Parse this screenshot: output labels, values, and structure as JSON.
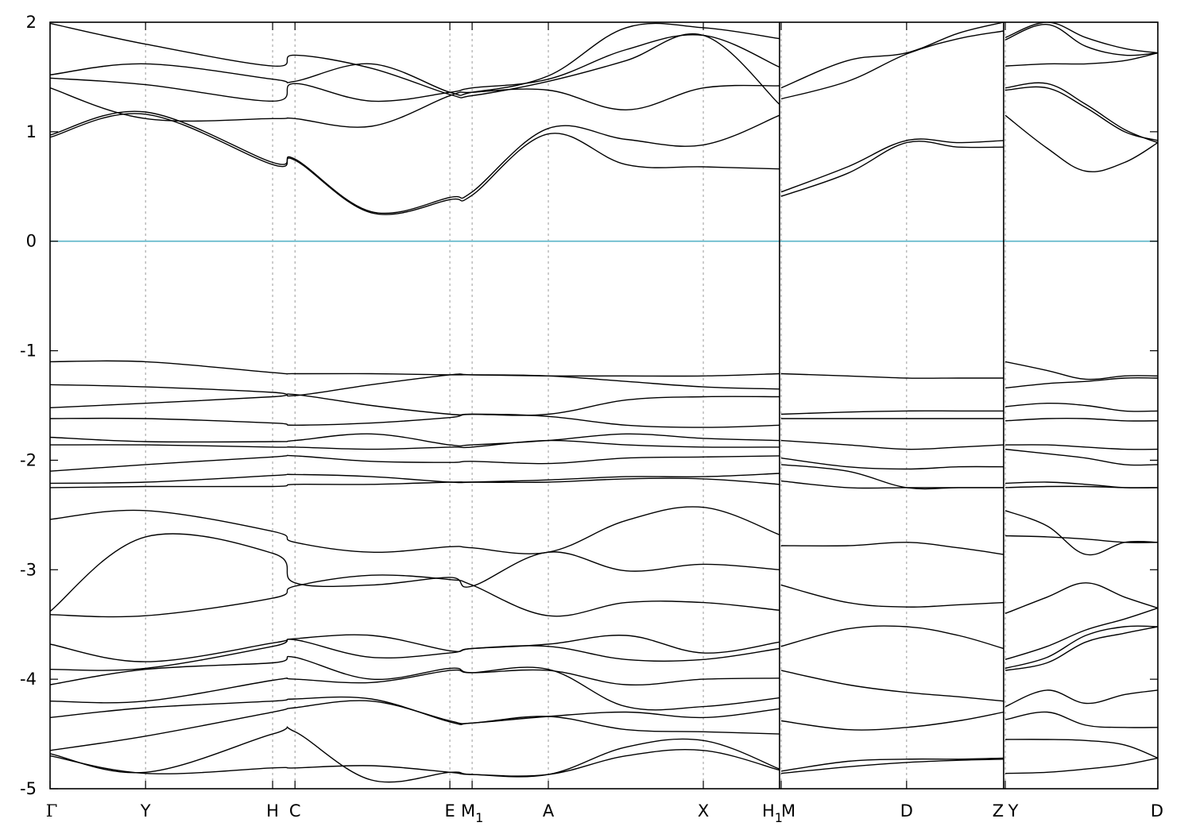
{
  "chart_data": {
    "type": "line",
    "title": "",
    "xlabel": "",
    "ylabel": "",
    "ylim": [
      -5,
      2
    ],
    "yticks": [
      2,
      1,
      0,
      -1,
      -2,
      -3,
      -4,
      -5
    ],
    "ytick_labels": [
      "2",
      "1",
      "0",
      "-1",
      "-2",
      "-3",
      "-4",
      "-5"
    ],
    "fermi_level": 0,
    "colors": {
      "bands": "#000000",
      "fermi": "#5ab4c8",
      "kpath_lines": "#9a9a9a"
    },
    "x_range": [
      0,
      1
    ],
    "kpoints": [
      {
        "label": "Γ",
        "x": 0.0
      },
      {
        "label": "Y",
        "x": 0.0862
      },
      {
        "label": "H",
        "x": 0.2009
      },
      {
        "label": "C",
        "x": 0.2211
      },
      {
        "label": "E",
        "x": 0.3609
      },
      {
        "label": "M",
        "sub": "1",
        "x": 0.381
      },
      {
        "label": "A",
        "x": 0.4498
      },
      {
        "label": "X",
        "x": 0.5897
      },
      {
        "label": "H",
        "sub": "1",
        "x": 0.6585
      },
      {
        "label": "M",
        "x": 0.66
      },
      {
        "label": "D",
        "x": 0.7732
      },
      {
        "label": "Z",
        "x": 0.8608
      },
      {
        "label": "Y",
        "x": 0.8623
      },
      {
        "label": "D",
        "x": 1.0
      }
    ],
    "path_breaks": [
      0.6585,
      0.8608
    ],
    "segments": [
      {
        "range": [
          0,
          0.6585
        ],
        "x": [
          0,
          0.0862,
          0.2009,
          0.2211,
          0.29,
          0.3609,
          0.381,
          0.4498,
          0.52,
          0.5897,
          0.6585
        ],
        "bands": [
          [
            0.95,
            1.16,
            0.7,
            0.74,
            0.26,
            0.38,
            0.42,
            0.98,
            0.7,
            0.68,
            0.66
          ],
          [
            0.97,
            1.18,
            0.72,
            0.75,
            0.27,
            0.4,
            0.45,
            1.03,
            0.93,
            0.88,
            1.15
          ],
          [
            1.4,
            1.12,
            1.12,
            1.12,
            1.05,
            1.33,
            1.36,
            1.38,
            1.2,
            1.4,
            1.42
          ],
          [
            1.49,
            1.43,
            1.28,
            1.44,
            1.28,
            1.36,
            1.4,
            1.48,
            1.75,
            1.88,
            1.59
          ],
          [
            1.52,
            1.62,
            1.48,
            1.46,
            1.62,
            1.36,
            1.36,
            1.51,
            1.95,
            1.95,
            1.85
          ],
          [
            1.99,
            1.8,
            1.6,
            1.7,
            1.58,
            1.34,
            1.33,
            1.46,
            1.65,
            1.88,
            1.25
          ],
          [
            -1.1,
            -1.1,
            -1.2,
            -1.21,
            -1.21,
            -1.22,
            -1.22,
            -1.23,
            -1.23,
            -1.23,
            -1.21
          ],
          [
            -1.31,
            -1.33,
            -1.38,
            -1.41,
            -1.31,
            -1.22,
            -1.22,
            -1.23,
            -1.28,
            -1.33,
            -1.35
          ],
          [
            -1.52,
            -1.48,
            -1.42,
            -1.4,
            -1.5,
            -1.58,
            -1.58,
            -1.58,
            -1.45,
            -1.42,
            -1.42
          ],
          [
            -1.62,
            -1.62,
            -1.66,
            -1.68,
            -1.66,
            -1.61,
            -1.58,
            -1.6,
            -1.68,
            -1.7,
            -1.68
          ],
          [
            -1.79,
            -1.83,
            -1.83,
            -1.82,
            -1.76,
            -1.86,
            -1.86,
            -1.82,
            -1.76,
            -1.8,
            -1.82
          ],
          [
            -1.86,
            -1.86,
            -1.88,
            -1.88,
            -1.9,
            -1.88,
            -1.88,
            -1.82,
            -1.86,
            -1.88,
            -1.88
          ],
          [
            -2.1,
            -2.04,
            -1.97,
            -1.96,
            -2.01,
            -2.02,
            -2.01,
            -2.03,
            -1.98,
            -1.97,
            -1.96
          ],
          [
            -2.21,
            -2.2,
            -2.14,
            -2.13,
            -2.15,
            -2.2,
            -2.2,
            -2.18,
            -2.15,
            -2.15,
            -2.12
          ],
          [
            -2.25,
            -2.24,
            -2.24,
            -2.22,
            -2.22,
            -2.2,
            -2.2,
            -2.2,
            -2.17,
            -2.17,
            -2.22
          ],
          [
            -2.54,
            -2.46,
            -2.65,
            -2.75,
            -2.84,
            -2.79,
            -2.8,
            -2.84,
            -2.55,
            -2.43,
            -2.68
          ],
          [
            -3.38,
            -2.7,
            -2.85,
            -3.12,
            -3.14,
            -3.07,
            -3.15,
            -2.84,
            -3.01,
            -2.95,
            -3.0
          ],
          [
            -3.41,
            -3.42,
            -3.26,
            -3.15,
            -3.05,
            -3.09,
            -3.14,
            -3.42,
            -3.3,
            -3.3,
            -3.37
          ],
          [
            -3.68,
            -3.84,
            -3.67,
            -3.63,
            -3.6,
            -3.74,
            -3.72,
            -3.68,
            -3.6,
            -3.76,
            -3.66
          ],
          [
            -3.91,
            -3.9,
            -3.7,
            -3.64,
            -3.8,
            -3.76,
            -3.72,
            -3.7,
            -3.82,
            -3.82,
            -3.72
          ],
          [
            -4.05,
            -3.91,
            -3.85,
            -3.8,
            -4.0,
            -3.9,
            -3.94,
            -3.92,
            -4.05,
            -4.0,
            -3.99
          ],
          [
            -4.2,
            -4.2,
            -4.01,
            -4.0,
            -4.03,
            -3.92,
            -3.94,
            -3.91,
            -4.25,
            -4.25,
            -4.17
          ],
          [
            -4.35,
            -4.26,
            -4.2,
            -4.18,
            -4.18,
            -4.39,
            -4.4,
            -4.34,
            -4.3,
            -4.35,
            -4.27
          ],
          [
            -4.65,
            -4.52,
            -4.3,
            -4.26,
            -4.2,
            -4.38,
            -4.4,
            -4.34,
            -4.46,
            -4.48,
            -4.5
          ],
          [
            -4.68,
            -4.85,
            -4.5,
            -4.48,
            -4.92,
            -4.85,
            -4.87,
            -4.87,
            -4.62,
            -4.56,
            -4.82
          ],
          [
            -4.7,
            -4.86,
            -4.81,
            -4.81,
            -4.79,
            -4.85,
            -4.87,
            -4.87,
            -4.7,
            -4.65,
            -4.83
          ]
        ]
      },
      {
        "range": [
          0.66,
          0.8608
        ],
        "x": [
          0.66,
          0.72,
          0.7732,
          0.82,
          0.8608
        ],
        "bands": [
          [
            0.41,
            0.62,
            0.9,
            0.86,
            0.86
          ],
          [
            0.45,
            0.68,
            0.92,
            0.9,
            0.92
          ],
          [
            1.3,
            1.46,
            1.71,
            1.85,
            1.92
          ],
          [
            1.4,
            1.65,
            1.72,
            1.9,
            2.0
          ],
          [
            -1.21,
            -1.23,
            -1.25,
            -1.25,
            -1.25
          ],
          [
            -1.58,
            -1.56,
            -1.55,
            -1.55,
            -1.55
          ],
          [
            -1.62,
            -1.62,
            -1.62,
            -1.62,
            -1.62
          ],
          [
            -1.82,
            -1.86,
            -1.9,
            -1.88,
            -1.86
          ],
          [
            -1.98,
            -2.06,
            -2.08,
            -2.06,
            -2.06
          ],
          [
            -2.04,
            -2.1,
            -2.25,
            -2.25,
            -2.25
          ],
          [
            -2.19,
            -2.25,
            -2.25,
            -2.25,
            -2.25
          ],
          [
            -2.78,
            -2.78,
            -2.75,
            -2.8,
            -2.86
          ],
          [
            -3.14,
            -3.3,
            -3.34,
            -3.32,
            -3.3
          ],
          [
            -3.7,
            -3.54,
            -3.52,
            -3.6,
            -3.72
          ],
          [
            -3.92,
            -4.05,
            -4.12,
            -4.16,
            -4.2
          ],
          [
            -4.38,
            -4.46,
            -4.44,
            -4.38,
            -4.3
          ],
          [
            -4.84,
            -4.75,
            -4.73,
            -4.73,
            -4.72
          ],
          [
            -4.86,
            -4.8,
            -4.76,
            -4.74,
            -4.73
          ]
        ]
      },
      {
        "range": [
          0.8623,
          1.0
        ],
        "x": [
          0.8623,
          0.9,
          0.935,
          0.97,
          1.0
        ],
        "bands": [
          [
            1.15,
            0.85,
            0.64,
            0.72,
            0.9
          ],
          [
            1.38,
            1.4,
            1.22,
            1.0,
            0.92
          ],
          [
            1.4,
            1.44,
            1.25,
            1.02,
            0.9
          ],
          [
            1.6,
            1.62,
            1.62,
            1.65,
            1.72
          ],
          [
            1.84,
            1.98,
            1.78,
            1.7,
            1.72
          ],
          [
            1.86,
            2.0,
            1.86,
            1.76,
            1.72
          ],
          [
            -1.1,
            -1.18,
            -1.26,
            -1.23,
            -1.23
          ],
          [
            -1.34,
            -1.3,
            -1.28,
            -1.25,
            -1.25
          ],
          [
            -1.51,
            -1.48,
            -1.5,
            -1.55,
            -1.55
          ],
          [
            -1.64,
            -1.62,
            -1.62,
            -1.64,
            -1.64
          ],
          [
            -1.86,
            -1.86,
            -1.88,
            -1.9,
            -1.9
          ],
          [
            -1.9,
            -1.94,
            -1.98,
            -2.04,
            -2.04
          ],
          [
            -2.21,
            -2.2,
            -2.22,
            -2.25,
            -2.25
          ],
          [
            -2.25,
            -2.24,
            -2.24,
            -2.25,
            -2.25
          ],
          [
            -2.46,
            -2.6,
            -2.86,
            -2.75,
            -2.75
          ],
          [
            -2.69,
            -2.7,
            -2.72,
            -2.75,
            -2.75
          ],
          [
            -3.4,
            -3.25,
            -3.12,
            -3.25,
            -3.35
          ],
          [
            -3.82,
            -3.7,
            -3.55,
            -3.45,
            -3.35
          ],
          [
            -3.9,
            -3.8,
            -3.6,
            -3.52,
            -3.52
          ],
          [
            -3.92,
            -3.85,
            -3.66,
            -3.58,
            -3.52
          ],
          [
            -4.25,
            -4.1,
            -4.22,
            -4.14,
            -4.1
          ],
          [
            -4.37,
            -4.3,
            -4.42,
            -4.44,
            -4.44
          ],
          [
            -4.55,
            -4.55,
            -4.56,
            -4.6,
            -4.72
          ],
          [
            -4.86,
            -4.85,
            -4.82,
            -4.78,
            -4.72
          ]
        ]
      }
    ]
  }
}
